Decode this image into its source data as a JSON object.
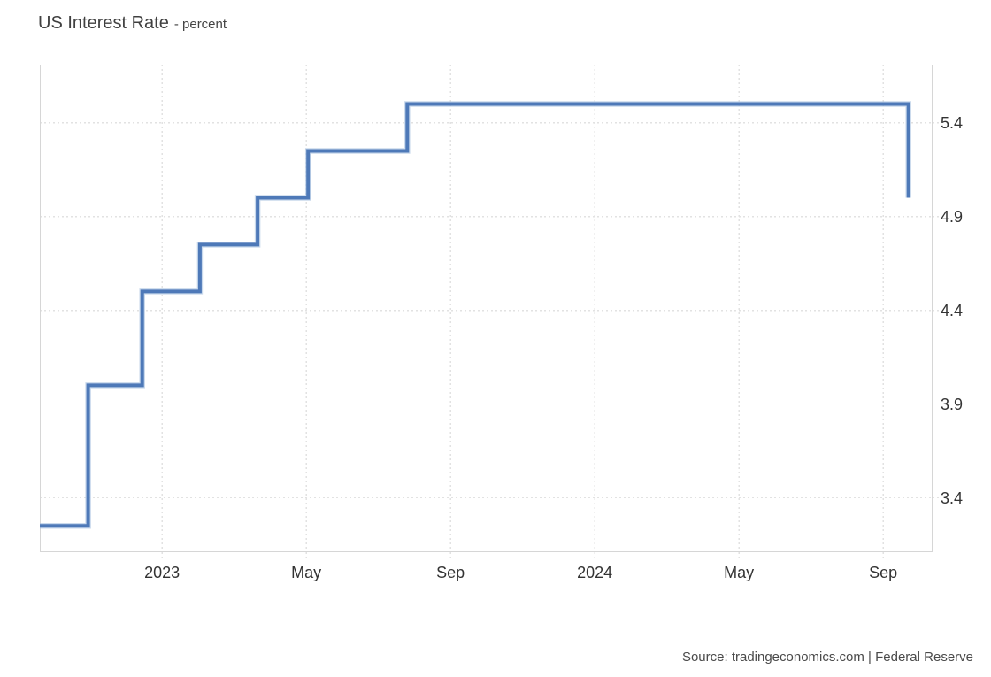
{
  "header": {
    "title": "US Interest Rate",
    "subtitle": "- percent"
  },
  "footer": {
    "source": "Source: tradingeconomics.com | Federal Reserve"
  },
  "colors": {
    "line": "#4e79b8",
    "line_halo": "#9db9dc",
    "grid_dotted": "#e2e2e2",
    "border_solid": "#d6d6d6",
    "tick_stub": "#d6d6d6",
    "tick_label": "#333333",
    "title_text": "#404040",
    "source_text": "#4a4a4a"
  },
  "chart_data": {
    "type": "line",
    "line_style": "step-after",
    "title": "US Interest Rate",
    "ylabel": "percent",
    "legend": "none",
    "grid": "dotted",
    "y_axis_side": "right",
    "ylim": [
      3.11,
      5.71
    ],
    "y_ticks": [
      5.4,
      4.9,
      4.4,
      3.9,
      3.4
    ],
    "x_domain_months_from_jan2023": [
      -3.39,
      21.37
    ],
    "x_ticks": [
      {
        "t": 0,
        "label": "2023"
      },
      {
        "t": 4,
        "label": "May"
      },
      {
        "t": 8,
        "label": "Sep"
      },
      {
        "t": 12,
        "label": "2024"
      },
      {
        "t": 16,
        "label": "May"
      },
      {
        "t": 20,
        "label": "Sep"
      }
    ],
    "series": [
      {
        "name": "US Interest Rate (percent)",
        "steps": [
          {
            "t": -3.39,
            "date": "Sep 2022",
            "rate": 3.25
          },
          {
            "t": -2.05,
            "date": "Nov 2022",
            "rate": 4.0
          },
          {
            "t": -0.55,
            "date": "Dec 2022",
            "rate": 4.5
          },
          {
            "t": 1.05,
            "date": "Feb 2023",
            "rate": 4.75
          },
          {
            "t": 2.65,
            "date": "Mar 2023",
            "rate": 5.0
          },
          {
            "t": 4.05,
            "date": "May 2023",
            "rate": 5.25
          },
          {
            "t": 6.8,
            "date": "Jul 2023",
            "rate": 5.5
          },
          {
            "t": 20.7,
            "date": "Sep 2024",
            "rate": 5.0
          }
        ]
      }
    ]
  }
}
